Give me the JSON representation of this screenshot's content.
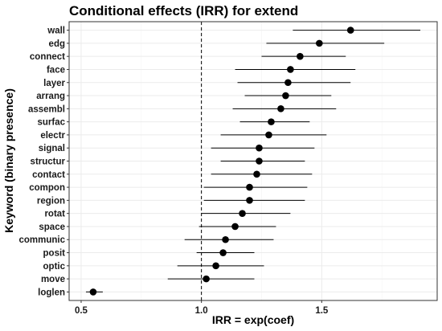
{
  "chart_data": {
    "type": "scatter",
    "subtype": "forest-plot",
    "title": "Conditional effects (IRR) for extend",
    "xlabel": "IRR = exp(coef)",
    "ylabel": "Keyword (binary presence)",
    "xlim": [
      0.45,
      1.98
    ],
    "xticks": [
      "0.5",
      "1.0",
      "1.5"
    ],
    "xtick_values": [
      0.5,
      1.0,
      1.5
    ],
    "reference_line": 1.0,
    "grid": true,
    "legend": "none",
    "colors": {
      "point": "#000000",
      "grid_major": "#ebebeb",
      "grid_minor": "#f5f5f5",
      "border": "#333333"
    },
    "points": [
      {
        "label": "wall",
        "irr": 1.62,
        "low": 1.38,
        "high": 1.91
      },
      {
        "label": "edg",
        "irr": 1.49,
        "low": 1.27,
        "high": 1.76
      },
      {
        "label": "connect",
        "irr": 1.41,
        "low": 1.25,
        "high": 1.6
      },
      {
        "label": "face",
        "irr": 1.37,
        "low": 1.14,
        "high": 1.64
      },
      {
        "label": "layer",
        "irr": 1.36,
        "low": 1.15,
        "high": 1.62
      },
      {
        "label": "arrang",
        "irr": 1.35,
        "low": 1.18,
        "high": 1.54
      },
      {
        "label": "assembl",
        "irr": 1.33,
        "low": 1.13,
        "high": 1.56
      },
      {
        "label": "surfac",
        "irr": 1.29,
        "low": 1.16,
        "high": 1.45
      },
      {
        "label": "electr",
        "irr": 1.28,
        "low": 1.08,
        "high": 1.52
      },
      {
        "label": "signal",
        "irr": 1.24,
        "low": 1.04,
        "high": 1.47
      },
      {
        "label": "structur",
        "irr": 1.24,
        "low": 1.08,
        "high": 1.43
      },
      {
        "label": "contact",
        "irr": 1.23,
        "low": 1.04,
        "high": 1.46
      },
      {
        "label": "compon",
        "irr": 1.2,
        "low": 1.01,
        "high": 1.44
      },
      {
        "label": "region",
        "irr": 1.2,
        "low": 1.01,
        "high": 1.43
      },
      {
        "label": "rotat",
        "irr": 1.17,
        "low": 1.0,
        "high": 1.37
      },
      {
        "label": "space",
        "irr": 1.14,
        "low": 0.99,
        "high": 1.31
      },
      {
        "label": "communic",
        "irr": 1.1,
        "low": 0.93,
        "high": 1.3
      },
      {
        "label": "posit",
        "irr": 1.09,
        "low": 0.98,
        "high": 1.22
      },
      {
        "label": "optic",
        "irr": 1.06,
        "low": 0.9,
        "high": 1.26
      },
      {
        "label": "move",
        "irr": 1.02,
        "low": 0.86,
        "high": 1.22
      },
      {
        "label": "loglen",
        "irr": 0.55,
        "low": 0.52,
        "high": 0.59
      }
    ]
  }
}
